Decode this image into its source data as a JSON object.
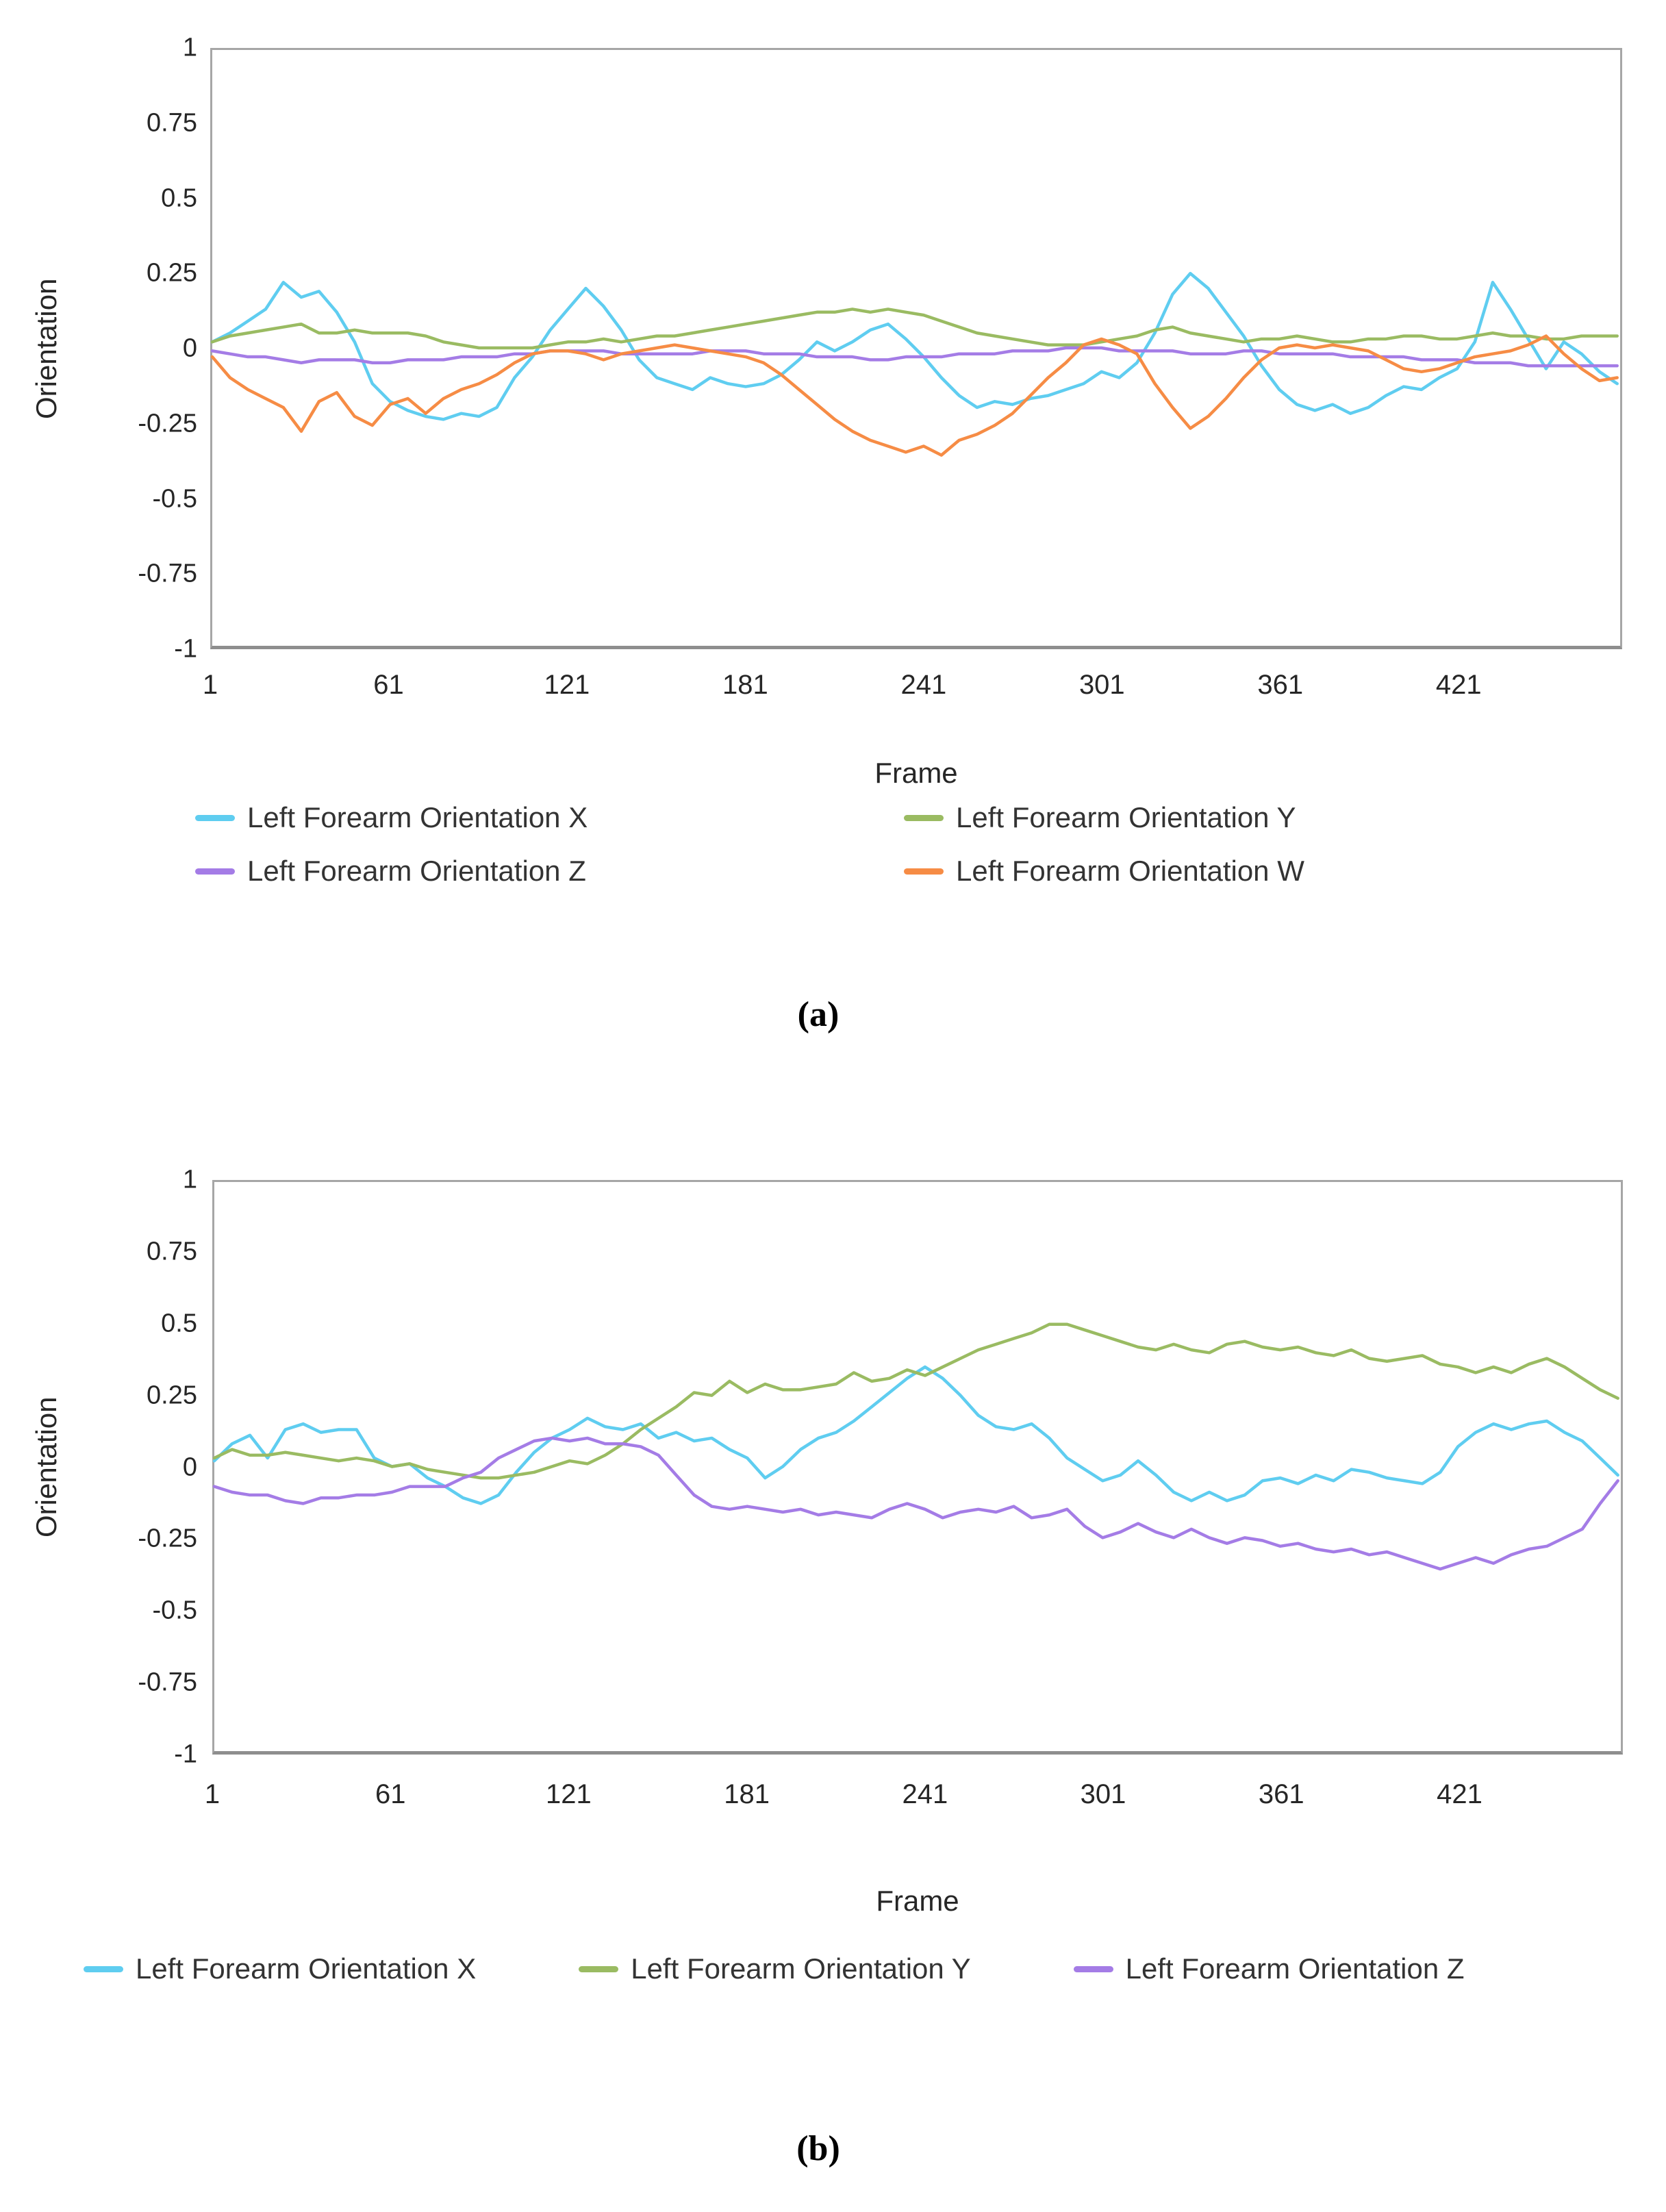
{
  "captions": {
    "a": "(a)",
    "b": "(b)"
  },
  "colors": {
    "x": "#5fcdf0",
    "y": "#9abb62",
    "z": "#a47ce6",
    "w": "#f68c45"
  },
  "charts": [
    {
      "key": "a",
      "y_axis_label": "Orientation",
      "x_axis_label": "Frame",
      "y_ticks": [
        "1",
        "0.75",
        "0.5",
        "0.25",
        "0",
        "-0.25",
        "-0.5",
        "-0.75",
        "-1"
      ],
      "x_ticks": [
        "1",
        "61",
        "121",
        "181",
        "241",
        "301",
        "361",
        "421"
      ],
      "legend": [
        {
          "label": "Left Forearm Orientation X",
          "color": "#5fcdf0"
        },
        {
          "label": "Left Forearm Orientation Y",
          "color": "#9abb62"
        },
        {
          "label": "Left Forearm Orientation Z",
          "color": "#a47ce6"
        },
        {
          "label": "Left Forearm Orientation W",
          "color": "#f68c45"
        }
      ]
    },
    {
      "key": "b",
      "y_axis_label": "Orientation",
      "x_axis_label": "Frame",
      "y_ticks": [
        "1",
        "0.75",
        "0.5",
        "0.25",
        "0",
        "-0.25",
        "-0.5",
        "-0.75",
        "-1"
      ],
      "x_ticks": [
        "1",
        "61",
        "121",
        "181",
        "241",
        "301",
        "361",
        "421"
      ],
      "legend": [
        {
          "label": "Left Forearm Orientation X",
          "color": "#5fcdf0"
        },
        {
          "label": "Left Forearm Orientation Y",
          "color": "#9abb62"
        },
        {
          "label": "Left Forearm Orientation Z",
          "color": "#a47ce6"
        }
      ]
    }
  ],
  "chart_data": [
    {
      "type": "line",
      "title": "",
      "xlabel": "Frame",
      "ylabel": "Orientation",
      "xlim": [
        1,
        476
      ],
      "ylim": [
        -1,
        1
      ],
      "x_tick_values": [
        1,
        61,
        121,
        181,
        241,
        301,
        361,
        421
      ],
      "grid": false,
      "legend_position": "bottom",
      "x": [
        1,
        7,
        13,
        19,
        25,
        31,
        37,
        43,
        49,
        55,
        61,
        67,
        73,
        79,
        85,
        91,
        97,
        103,
        109,
        115,
        121,
        127,
        133,
        139,
        145,
        151,
        157,
        163,
        169,
        175,
        181,
        187,
        193,
        199,
        205,
        211,
        217,
        223,
        229,
        235,
        241,
        247,
        253,
        259,
        265,
        271,
        277,
        283,
        289,
        295,
        301,
        307,
        313,
        319,
        325,
        331,
        337,
        343,
        349,
        355,
        361,
        367,
        373,
        379,
        385,
        391,
        397,
        403,
        409,
        415,
        421,
        427,
        433,
        439,
        445,
        451,
        457,
        463,
        469,
        475
      ],
      "series": [
        {
          "name": "Left Forearm Orientation X",
          "color": "#5fcdf0",
          "values": [
            0.02,
            0.05,
            0.09,
            0.13,
            0.22,
            0.17,
            0.19,
            0.12,
            0.02,
            -0.12,
            -0.18,
            -0.21,
            -0.23,
            -0.24,
            -0.22,
            -0.23,
            -0.2,
            -0.1,
            -0.03,
            0.06,
            0.13,
            0.2,
            0.14,
            0.06,
            -0.04,
            -0.1,
            -0.12,
            -0.14,
            -0.1,
            -0.12,
            -0.13,
            -0.12,
            -0.09,
            -0.04,
            0.02,
            -0.01,
            0.02,
            0.06,
            0.08,
            0.03,
            -0.03,
            -0.1,
            -0.16,
            -0.2,
            -0.18,
            -0.19,
            -0.17,
            -0.16,
            -0.14,
            -0.12,
            -0.08,
            -0.1,
            -0.05,
            0.05,
            0.18,
            0.25,
            0.2,
            0.12,
            0.04,
            -0.06,
            -0.14,
            -0.19,
            -0.21,
            -0.19,
            -0.22,
            -0.2,
            -0.16,
            -0.13,
            -0.14,
            -0.1,
            -0.07,
            0.02,
            0.22,
            0.13,
            0.03,
            -0.07,
            0.02,
            -0.02,
            -0.08,
            -0.12
          ]
        },
        {
          "name": "Left Forearm Orientation Y",
          "color": "#9abb62",
          "values": [
            0.02,
            0.04,
            0.05,
            0.06,
            0.07,
            0.08,
            0.05,
            0.05,
            0.06,
            0.05,
            0.05,
            0.05,
            0.04,
            0.02,
            0.01,
            0.0,
            0.0,
            0.0,
            0.0,
            0.01,
            0.02,
            0.02,
            0.03,
            0.02,
            0.03,
            0.04,
            0.04,
            0.05,
            0.06,
            0.07,
            0.08,
            0.09,
            0.1,
            0.11,
            0.12,
            0.12,
            0.13,
            0.12,
            0.13,
            0.12,
            0.11,
            0.09,
            0.07,
            0.05,
            0.04,
            0.03,
            0.02,
            0.01,
            0.01,
            0.01,
            0.02,
            0.03,
            0.04,
            0.06,
            0.07,
            0.05,
            0.04,
            0.03,
            0.02,
            0.03,
            0.03,
            0.04,
            0.03,
            0.02,
            0.02,
            0.03,
            0.03,
            0.04,
            0.04,
            0.03,
            0.03,
            0.04,
            0.05,
            0.04,
            0.04,
            0.03,
            0.03,
            0.04,
            0.04,
            0.04
          ]
        },
        {
          "name": "Left Forearm Orientation Z",
          "color": "#a47ce6",
          "values": [
            -0.01,
            -0.02,
            -0.03,
            -0.03,
            -0.04,
            -0.05,
            -0.04,
            -0.04,
            -0.04,
            -0.05,
            -0.05,
            -0.04,
            -0.04,
            -0.04,
            -0.03,
            -0.03,
            -0.03,
            -0.02,
            -0.02,
            -0.01,
            -0.01,
            -0.01,
            -0.01,
            -0.02,
            -0.02,
            -0.02,
            -0.02,
            -0.02,
            -0.01,
            -0.01,
            -0.01,
            -0.02,
            -0.02,
            -0.02,
            -0.03,
            -0.03,
            -0.03,
            -0.04,
            -0.04,
            -0.03,
            -0.03,
            -0.03,
            -0.02,
            -0.02,
            -0.02,
            -0.01,
            -0.01,
            -0.01,
            0.0,
            0.0,
            0.0,
            -0.01,
            -0.01,
            -0.01,
            -0.01,
            -0.02,
            -0.02,
            -0.02,
            -0.01,
            -0.01,
            -0.02,
            -0.02,
            -0.02,
            -0.02,
            -0.03,
            -0.03,
            -0.03,
            -0.03,
            -0.04,
            -0.04,
            -0.04,
            -0.05,
            -0.05,
            -0.05,
            -0.06,
            -0.06,
            -0.06,
            -0.06,
            -0.06,
            -0.06
          ]
        },
        {
          "name": "Left Forearm Orientation W",
          "color": "#f68c45",
          "values": [
            -0.03,
            -0.1,
            -0.14,
            -0.17,
            -0.2,
            -0.28,
            -0.18,
            -0.15,
            -0.23,
            -0.26,
            -0.19,
            -0.17,
            -0.22,
            -0.17,
            -0.14,
            -0.12,
            -0.09,
            -0.05,
            -0.02,
            -0.01,
            -0.01,
            -0.02,
            -0.04,
            -0.02,
            -0.01,
            0.0,
            0.01,
            0.0,
            -0.01,
            -0.02,
            -0.03,
            -0.05,
            -0.09,
            -0.14,
            -0.19,
            -0.24,
            -0.28,
            -0.31,
            -0.33,
            -0.35,
            -0.33,
            -0.36,
            -0.31,
            -0.29,
            -0.26,
            -0.22,
            -0.16,
            -0.1,
            -0.05,
            0.01,
            0.03,
            0.01,
            -0.02,
            -0.12,
            -0.2,
            -0.27,
            -0.23,
            -0.17,
            -0.1,
            -0.04,
            0.0,
            0.01,
            0.0,
            0.01,
            0.0,
            -0.01,
            -0.04,
            -0.07,
            -0.08,
            -0.07,
            -0.05,
            -0.03,
            -0.02,
            -0.01,
            0.01,
            0.04,
            -0.02,
            -0.07,
            -0.11,
            -0.1
          ]
        }
      ]
    },
    {
      "type": "line",
      "title": "",
      "xlabel": "Frame",
      "ylabel": "Orientation",
      "xlim": [
        1,
        476
      ],
      "ylim": [
        -1,
        1
      ],
      "x_tick_values": [
        1,
        61,
        121,
        181,
        241,
        301,
        361,
        421
      ],
      "grid": false,
      "legend_position": "bottom",
      "x": [
        1,
        7,
        13,
        19,
        25,
        31,
        37,
        43,
        49,
        55,
        61,
        67,
        73,
        79,
        85,
        91,
        97,
        103,
        109,
        115,
        121,
        127,
        133,
        139,
        145,
        151,
        157,
        163,
        169,
        175,
        181,
        187,
        193,
        199,
        205,
        211,
        217,
        223,
        229,
        235,
        241,
        247,
        253,
        259,
        265,
        271,
        277,
        283,
        289,
        295,
        301,
        307,
        313,
        319,
        325,
        331,
        337,
        343,
        349,
        355,
        361,
        367,
        373,
        379,
        385,
        391,
        397,
        403,
        409,
        415,
        421,
        427,
        433,
        439,
        445,
        451,
        457,
        463,
        469,
        475
      ],
      "series": [
        {
          "name": "Left Forearm Orientation X",
          "color": "#5fcdf0",
          "values": [
            0.02,
            0.08,
            0.11,
            0.03,
            0.13,
            0.15,
            0.12,
            0.13,
            0.13,
            0.03,
            0.0,
            0.01,
            -0.04,
            -0.07,
            -0.11,
            -0.13,
            -0.1,
            -0.02,
            0.05,
            0.1,
            0.13,
            0.17,
            0.14,
            0.13,
            0.15,
            0.1,
            0.12,
            0.09,
            0.1,
            0.06,
            0.03,
            -0.04,
            0.0,
            0.06,
            0.1,
            0.12,
            0.16,
            0.21,
            0.26,
            0.31,
            0.35,
            0.31,
            0.25,
            0.18,
            0.14,
            0.13,
            0.15,
            0.1,
            0.03,
            -0.01,
            -0.05,
            -0.03,
            0.02,
            -0.03,
            -0.09,
            -0.12,
            -0.09,
            -0.12,
            -0.1,
            -0.05,
            -0.04,
            -0.06,
            -0.03,
            -0.05,
            -0.01,
            -0.02,
            -0.04,
            -0.05,
            -0.06,
            -0.02,
            0.07,
            0.12,
            0.15,
            0.13,
            0.15,
            0.16,
            0.12,
            0.09,
            0.03,
            -0.03
          ]
        },
        {
          "name": "Left Forearm Orientation Y",
          "color": "#9abb62",
          "values": [
            0.03,
            0.06,
            0.04,
            0.04,
            0.05,
            0.04,
            0.03,
            0.02,
            0.03,
            0.02,
            0.0,
            0.01,
            -0.01,
            -0.02,
            -0.03,
            -0.04,
            -0.04,
            -0.03,
            -0.02,
            0.0,
            0.02,
            0.01,
            0.04,
            0.08,
            0.13,
            0.17,
            0.21,
            0.26,
            0.25,
            0.3,
            0.26,
            0.29,
            0.27,
            0.27,
            0.28,
            0.29,
            0.33,
            0.3,
            0.31,
            0.34,
            0.32,
            0.35,
            0.38,
            0.41,
            0.43,
            0.45,
            0.47,
            0.5,
            0.5,
            0.48,
            0.46,
            0.44,
            0.42,
            0.41,
            0.43,
            0.41,
            0.4,
            0.43,
            0.44,
            0.42,
            0.41,
            0.42,
            0.4,
            0.39,
            0.41,
            0.38,
            0.37,
            0.38,
            0.39,
            0.36,
            0.35,
            0.33,
            0.35,
            0.33,
            0.36,
            0.38,
            0.35,
            0.31,
            0.27,
            0.24
          ]
        },
        {
          "name": "Left Forearm Orientation Z",
          "color": "#a47ce6",
          "values": [
            -0.07,
            -0.09,
            -0.1,
            -0.1,
            -0.12,
            -0.13,
            -0.11,
            -0.11,
            -0.1,
            -0.1,
            -0.09,
            -0.07,
            -0.07,
            -0.07,
            -0.04,
            -0.02,
            0.03,
            0.06,
            0.09,
            0.1,
            0.09,
            0.1,
            0.08,
            0.08,
            0.07,
            0.04,
            -0.03,
            -0.1,
            -0.14,
            -0.15,
            -0.14,
            -0.15,
            -0.16,
            -0.15,
            -0.17,
            -0.16,
            -0.17,
            -0.18,
            -0.15,
            -0.13,
            -0.15,
            -0.18,
            -0.16,
            -0.15,
            -0.16,
            -0.14,
            -0.18,
            -0.17,
            -0.15,
            -0.21,
            -0.25,
            -0.23,
            -0.2,
            -0.23,
            -0.25,
            -0.22,
            -0.25,
            -0.27,
            -0.25,
            -0.26,
            -0.28,
            -0.27,
            -0.29,
            -0.3,
            -0.29,
            -0.31,
            -0.3,
            -0.32,
            -0.34,
            -0.36,
            -0.34,
            -0.32,
            -0.34,
            -0.31,
            -0.29,
            -0.28,
            -0.25,
            -0.22,
            -0.13,
            -0.05
          ]
        }
      ]
    }
  ]
}
